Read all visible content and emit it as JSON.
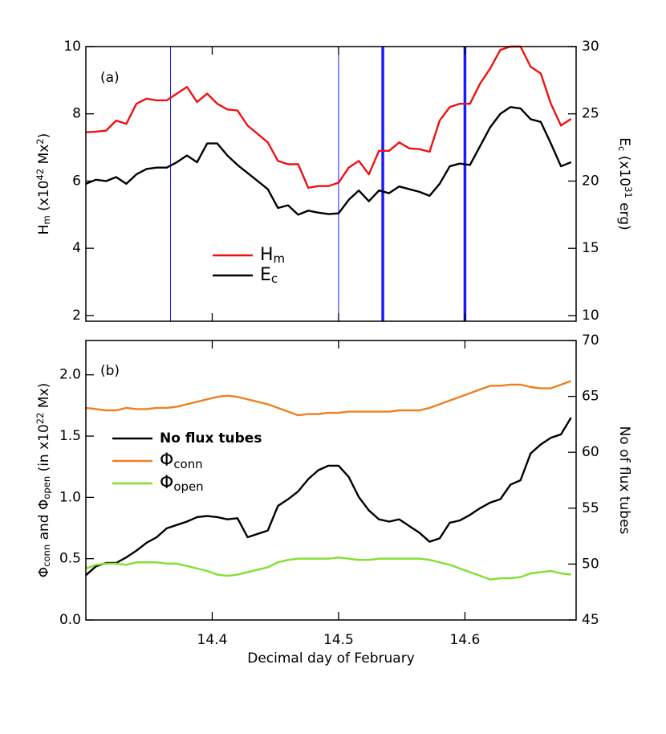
{
  "chart_data": [
    {
      "type": "line",
      "panel_label": "(a)",
      "y_label": [
        {
          "text": "H"
        },
        {
          "text": "m",
          "script": "sub"
        },
        {
          "text": " (x10"
        },
        {
          "text": "42",
          "script": "super"
        },
        {
          "text": " Mx"
        },
        {
          "text": "2",
          "script": "super"
        },
        {
          "text": ")"
        }
      ],
      "y2_label": [
        {
          "text": "E"
        },
        {
          "text": "c",
          "script": "sub"
        },
        {
          "text": " (x10"
        },
        {
          "text": "31",
          "script": "super"
        },
        {
          "text": " erg)"
        }
      ],
      "x": [
        14.3,
        14.308,
        14.316,
        14.324,
        14.332,
        14.34,
        14.348,
        14.356,
        14.364,
        14.372,
        14.38,
        14.388,
        14.396,
        14.404,
        14.412,
        14.42,
        14.428,
        14.436,
        14.444,
        14.452,
        14.46,
        14.468,
        14.476,
        14.484,
        14.492,
        14.5,
        14.508,
        14.516,
        14.524,
        14.532,
        14.54,
        14.548,
        14.556,
        14.564,
        14.572,
        14.58,
        14.588,
        14.596,
        14.604,
        14.612,
        14.62,
        14.628,
        14.636,
        14.644,
        14.652,
        14.66,
        14.668,
        14.676,
        14.684
      ],
      "xlim": [
        14.3,
        14.688
      ],
      "xticks": [
        14.4,
        14.5,
        14.6
      ],
      "xtick_labels": false,
      "ylim": [
        1.83,
        10
      ],
      "yticks": [
        2,
        4,
        6,
        8,
        10
      ],
      "y2lim": [
        9.58,
        30
      ],
      "y2ticks": [
        10,
        15,
        20,
        25,
        30
      ],
      "vline_color": "#1a1aff",
      "vlines": [
        {
          "x": 14.367,
          "weight": "thin"
        },
        {
          "x": 14.5,
          "weight": "thin"
        },
        {
          "x": 14.535,
          "weight": "thick"
        },
        {
          "x": 14.6,
          "weight": "thick"
        }
      ],
      "series": [
        {
          "name": [
            {
              "text": "H"
            },
            {
              "text": "m",
              "script": "sub"
            }
          ],
          "color": "#ee1111",
          "values": [
            7.45,
            7.47,
            7.5,
            7.8,
            7.7,
            8.3,
            8.45,
            8.4,
            8.4,
            8.6,
            8.8,
            8.35,
            8.6,
            8.3,
            8.13,
            8.1,
            7.65,
            7.4,
            7.15,
            6.6,
            6.5,
            6.5,
            5.8,
            5.85,
            5.85,
            5.95,
            6.4,
            6.6,
            6.2,
            6.9,
            6.9,
            7.15,
            6.97,
            6.95,
            6.87,
            7.8,
            8.2,
            8.3,
            8.3,
            8.9,
            9.35,
            9.9,
            10.0,
            10.0,
            9.4,
            9.2,
            8.3,
            7.65,
            7.85
          ]
        },
        {
          "name": [
            {
              "text": "E"
            },
            {
              "text": "c",
              "script": "sub"
            }
          ],
          "color": "#000000",
          "axis": "y2",
          "values": [
            19.8,
            20.1,
            20.0,
            20.3,
            19.8,
            20.5,
            20.9,
            21.0,
            21.0,
            21.4,
            21.9,
            21.4,
            22.8,
            22.8,
            21.9,
            21.2,
            20.6,
            20.0,
            19.4,
            18.0,
            18.2,
            17.5,
            17.8,
            17.65,
            17.55,
            17.6,
            18.6,
            19.3,
            18.5,
            19.3,
            19.1,
            19.6,
            19.4,
            19.2,
            18.9,
            19.8,
            21.1,
            21.3,
            21.2,
            22.6,
            24.0,
            25.0,
            25.5,
            25.4,
            24.6,
            24.4,
            22.8,
            21.1,
            21.4
          ]
        }
      ]
    },
    {
      "type": "line",
      "panel_label": "(b)",
      "x_label": "Decimal day of February",
      "y_label": [
        {
          "text": "Φ"
        },
        {
          "text": "conn",
          "script": "sub"
        },
        {
          "text": " and  Φ"
        },
        {
          "text": "open",
          "script": "sub"
        },
        {
          "text": " (in x10"
        },
        {
          "text": "22",
          "script": "super"
        },
        {
          "text": " Mx)"
        }
      ],
      "y2_label": [
        {
          "text": "No of flux tubes"
        }
      ],
      "x": [
        14.3,
        14.308,
        14.316,
        14.324,
        14.332,
        14.34,
        14.348,
        14.356,
        14.364,
        14.372,
        14.38,
        14.388,
        14.396,
        14.404,
        14.412,
        14.42,
        14.428,
        14.436,
        14.444,
        14.452,
        14.46,
        14.468,
        14.476,
        14.484,
        14.492,
        14.5,
        14.508,
        14.516,
        14.524,
        14.532,
        14.54,
        14.548,
        14.556,
        14.564,
        14.572,
        14.58,
        14.588,
        14.596,
        14.604,
        14.612,
        14.62,
        14.628,
        14.636,
        14.644,
        14.652,
        14.66,
        14.668,
        14.676,
        14.684
      ],
      "xlim": [
        14.3,
        14.688
      ],
      "xticks": [
        14.4,
        14.5,
        14.6
      ],
      "ylim": [
        0,
        2.28
      ],
      "yticks": [
        {
          "value": 0,
          "label": "0.0"
        },
        0.5,
        {
          "value": 1,
          "label": "1.0"
        },
        1.5,
        {
          "value": 2,
          "label": "2.0"
        }
      ],
      "y2lim": [
        45,
        70
      ],
      "y2ticks": [
        45,
        50,
        55,
        60,
        65,
        70
      ],
      "series": [
        {
          "name": [
            {
              "text": "No flux tubes"
            }
          ],
          "color": "#000000",
          "axis": "y2",
          "values": [
            49.0,
            49.8,
            50.1,
            50.1,
            50.6,
            51.2,
            51.9,
            52.4,
            53.2,
            53.5,
            53.8,
            54.2,
            54.3,
            54.2,
            54.0,
            54.1,
            52.4,
            52.7,
            53.0,
            55.2,
            55.8,
            56.5,
            57.6,
            58.4,
            58.8,
            58.8,
            57.8,
            56.0,
            54.8,
            54.0,
            53.8,
            54.0,
            53.4,
            52.8,
            52.0,
            52.3,
            53.7,
            53.9,
            54.4,
            55.0,
            55.5,
            55.8,
            57.1,
            57.5,
            59.9,
            60.7,
            61.3,
            61.6,
            63.1
          ]
        },
        {
          "name": [
            {
              "text": "Φ"
            },
            {
              "text": "conn",
              "script": "sub"
            }
          ],
          "color": "#f07f1e",
          "values": [
            1.73,
            1.72,
            1.71,
            1.71,
            1.73,
            1.72,
            1.72,
            1.73,
            1.73,
            1.74,
            1.76,
            1.78,
            1.8,
            1.82,
            1.83,
            1.82,
            1.8,
            1.78,
            1.76,
            1.73,
            1.7,
            1.67,
            1.68,
            1.68,
            1.69,
            1.69,
            1.7,
            1.7,
            1.7,
            1.7,
            1.7,
            1.71,
            1.71,
            1.71,
            1.73,
            1.76,
            1.79,
            1.82,
            1.85,
            1.88,
            1.91,
            1.91,
            1.92,
            1.92,
            1.9,
            1.89,
            1.89,
            1.92,
            1.95
          ]
        },
        {
          "name": [
            {
              "text": "Φ"
            },
            {
              "text": "open",
              "script": "sub"
            }
          ],
          "color": "#80e030",
          "values": [
            0.42,
            0.45,
            0.46,
            0.46,
            0.45,
            0.47,
            0.47,
            0.47,
            0.46,
            0.46,
            0.44,
            0.42,
            0.4,
            0.37,
            0.36,
            0.37,
            0.39,
            0.41,
            0.43,
            0.47,
            0.49,
            0.5,
            0.5,
            0.5,
            0.5,
            0.51,
            0.5,
            0.49,
            0.49,
            0.5,
            0.5,
            0.5,
            0.5,
            0.5,
            0.49,
            0.47,
            0.45,
            0.42,
            0.39,
            0.36,
            0.33,
            0.34,
            0.34,
            0.35,
            0.38,
            0.39,
            0.4,
            0.38,
            0.37
          ]
        }
      ]
    }
  ]
}
